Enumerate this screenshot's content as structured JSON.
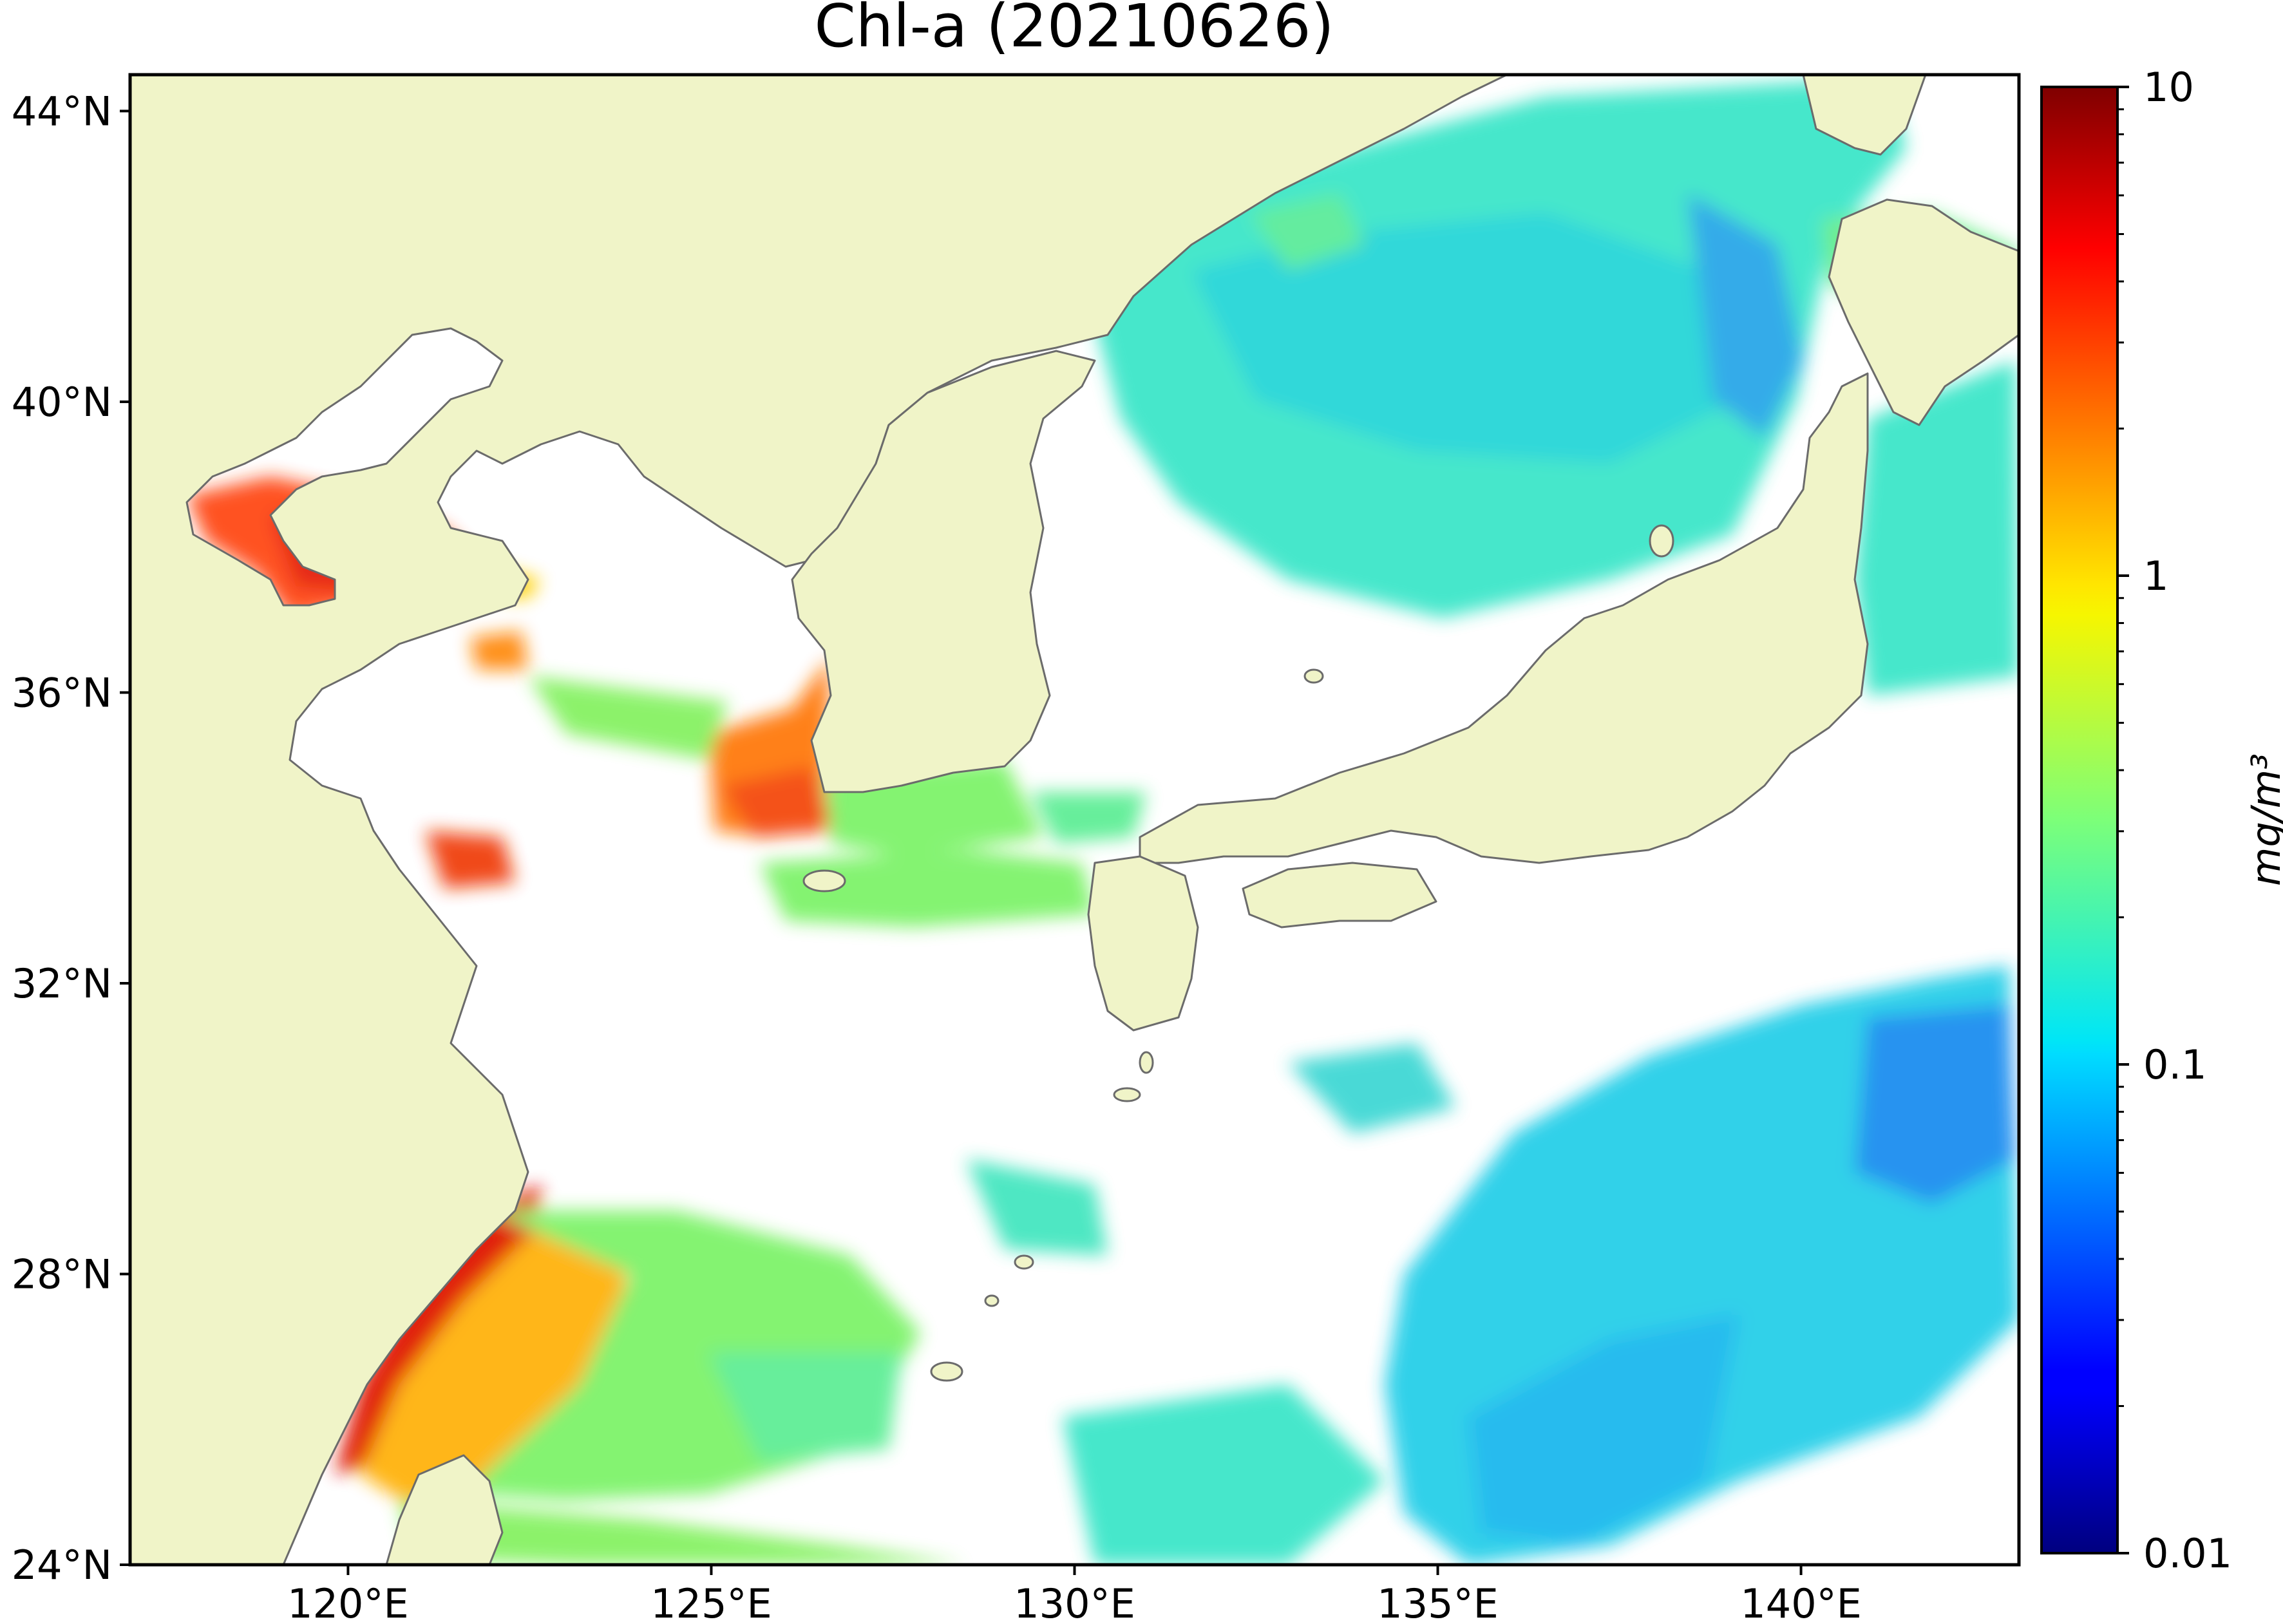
{
  "title": "Chl-a (20210626)",
  "map": {
    "lon_range": [
      117,
      143
    ],
    "lat_range": [
      24,
      44.5
    ],
    "lon_ticks": [
      {
        "value": 120,
        "label": "120°E"
      },
      {
        "value": 125,
        "label": "125°E"
      },
      {
        "value": 130,
        "label": "130°E"
      },
      {
        "value": 135,
        "label": "135°E"
      },
      {
        "value": 140,
        "label": "140°E"
      }
    ],
    "lat_ticks": [
      {
        "value": 24,
        "label": "24°N"
      },
      {
        "value": 28,
        "label": "28°N"
      },
      {
        "value": 32,
        "label": "32°N"
      },
      {
        "value": 36,
        "label": "36°N"
      },
      {
        "value": 40,
        "label": "40°N"
      },
      {
        "value": 44,
        "label": "44°N"
      }
    ],
    "colors": {
      "land": "#f0f4c8",
      "coastline": "#6b6b6b",
      "no_data": "#ffffff"
    }
  },
  "colorbar": {
    "label": "mg/m³",
    "scale": "log",
    "range": [
      0.01,
      10
    ],
    "colormap": "jet",
    "ticks": [
      {
        "value": 0.01,
        "label": "0.01"
      },
      {
        "value": 0.1,
        "label": "0.1"
      },
      {
        "value": 1,
        "label": "1"
      },
      {
        "value": 10,
        "label": "10"
      }
    ]
  }
}
